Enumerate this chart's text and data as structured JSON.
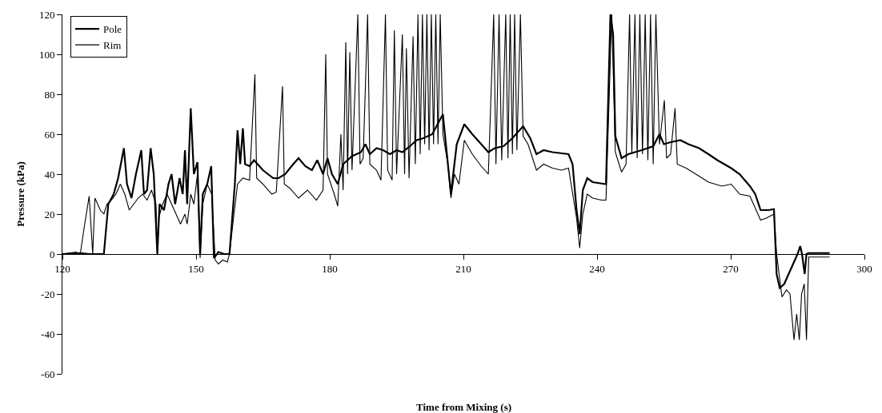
{
  "chart_data": {
    "type": "line",
    "xlabel": "Time from Mixing (s)",
    "ylabel": "Pressure (kPa)",
    "xlim": [
      120,
      300
    ],
    "xticks": [
      120,
      150,
      180,
      210,
      240,
      270,
      300
    ],
    "ylim": [
      -60,
      120
    ],
    "yticks": [
      -60,
      -40,
      -20,
      0,
      20,
      40,
      60,
      80,
      100,
      120
    ],
    "grid": false,
    "legend": "top left",
    "marker": "none",
    "line_style": "solid",
    "series": [
      {
        "name": "Pole",
        "color": "#000000",
        "x": [
          120,
          124,
          126,
          128.5,
          129.3,
          130.3,
          131.5,
          132.5,
          133.8,
          134.5,
          135.5,
          136.5,
          137.7,
          138.3,
          139,
          139.8,
          140.5,
          141.3,
          141.8,
          142.8,
          143.8,
          144.5,
          145.3,
          146.3,
          147,
          147.5,
          148,
          148.8,
          149.5,
          150.3,
          150.9,
          151.5,
          152.5,
          153.4,
          154,
          155,
          156.3,
          157.5,
          158.7,
          159.3,
          159.9,
          160.5,
          161,
          162,
          163,
          165,
          167.3,
          168.5,
          170,
          171.8,
          173,
          174.5,
          176,
          177.2,
          178.5,
          179.5,
          180.5,
          181.8,
          183,
          185,
          187,
          188,
          189,
          190.5,
          192,
          193.5,
          195,
          196.3,
          198,
          199.5,
          201,
          203,
          205.4,
          206.3,
          207.2,
          208.5,
          210.2,
          212,
          214,
          215.6,
          217,
          219,
          221,
          223.4,
          225,
          226.4,
          228,
          230,
          233.6,
          234.5,
          235.4,
          236.1,
          236.8,
          237.8,
          239,
          242,
          243,
          243.6,
          244.1,
          245.5,
          247,
          250,
          252.6,
          254,
          255,
          256.5,
          258.7,
          260.5,
          262.9,
          265,
          267,
          270.1,
          272,
          274.3,
          275.5,
          276.7,
          278.5,
          279.7,
          280.3,
          281,
          282,
          283,
          284,
          285,
          285.6,
          286,
          286.6,
          287,
          287.5,
          292.2
        ],
        "values": [
          0,
          0.5,
          0,
          0,
          0,
          25,
          30,
          38,
          53,
          35,
          28,
          40,
          52,
          30,
          32,
          53,
          40,
          0,
          25,
          22,
          35,
          40,
          25,
          38,
          30,
          52,
          25,
          73,
          40,
          46,
          0,
          30,
          35,
          44,
          -2,
          1,
          0,
          0,
          35,
          62,
          45,
          63,
          45,
          44,
          47,
          42,
          38,
          38,
          40,
          45,
          48,
          44,
          42,
          47,
          40,
          48,
          40,
          35,
          45,
          49,
          51,
          55,
          50,
          53,
          52,
          50,
          52,
          51,
          54,
          57,
          58,
          60,
          70,
          50,
          30,
          55,
          65,
          60,
          55,
          51,
          53,
          54,
          58,
          64,
          58,
          50,
          52,
          51,
          50,
          45,
          22,
          10,
          32,
          38,
          36,
          35,
          120,
          110,
          59,
          48,
          50,
          52,
          54,
          60,
          55,
          56,
          57,
          55,
          53,
          50,
          47,
          43,
          40,
          34,
          30,
          22,
          22,
          22.5,
          -10,
          -17,
          -15,
          -10,
          -5,
          0,
          4,
          0,
          -10,
          0,
          0.5,
          0.5
        ]
      },
      {
        "name": "Rim",
        "color": "#000000",
        "x": [
          120,
          121.5,
          123,
          124,
          125,
          126,
          126.8,
          127.3,
          128.5,
          129.3,
          130,
          131,
          132,
          133,
          134,
          135,
          136,
          137,
          138,
          139,
          140,
          141,
          141.3,
          141.6,
          142.5,
          143.5,
          144.5,
          145.5,
          146.5,
          147.5,
          148,
          148.8,
          149.5,
          150.3,
          150.9,
          151.5,
          152.5,
          153.5,
          154.3,
          155,
          156,
          157,
          157.5,
          158.5,
          159.3,
          160.5,
          162,
          163.2,
          163.6,
          165,
          167,
          168,
          169.4,
          169.8,
          171,
          173,
          175,
          177,
          178.5,
          179.1,
          179.5,
          181,
          181.8,
          182.5,
          183,
          183.6,
          184,
          184.5,
          185,
          186.3,
          186.8,
          187.5,
          188.5,
          189,
          190.5,
          191.5,
          192.5,
          193,
          194,
          194.5,
          195,
          196.3,
          196.8,
          197.2,
          197.8,
          198.7,
          199.2,
          199.8,
          200.3,
          200.8,
          201.3,
          201.8,
          202.3,
          202.8,
          203.3,
          203.8,
          204.3,
          204.8,
          205.4,
          206.5,
          207.2,
          208,
          209,
          210.2,
          212,
          214,
          215.6,
          216.8,
          217.3,
          218,
          218.6,
          219.5,
          220,
          220.5,
          221,
          221.5,
          222,
          222.8,
          223.4,
          224.5,
          226.4,
          228,
          230,
          232,
          233.6,
          235.4,
          236.1,
          236.8,
          237.8,
          239,
          241,
          242,
          243.3,
          244.1,
          245.5,
          246.5,
          247.3,
          247.8,
          248.5,
          249,
          249.6,
          250.2,
          250.8,
          251.4,
          252,
          252.6,
          253.2,
          254,
          255.1,
          255.6,
          256.5,
          257.5,
          258,
          260,
          262.9,
          265,
          268,
          270.1,
          272,
          274.3,
          276.7,
          278,
          279.7,
          280.3,
          281.5,
          282.5,
          283.3,
          284.2,
          284.8,
          285.4,
          285.9,
          286.5,
          287,
          287.5,
          292.2
        ],
        "values": [
          0,
          0.5,
          1,
          0,
          15,
          29,
          0,
          28,
          22,
          20,
          25,
          27,
          30,
          35,
          30,
          22,
          25,
          28,
          30,
          27,
          32,
          25,
          0,
          18,
          25,
          30,
          25,
          20,
          15,
          20,
          15,
          30,
          25,
          40,
          -2,
          25,
          35,
          30,
          -3,
          -5,
          -3,
          -4,
          0,
          20,
          35,
          38,
          37,
          90,
          38,
          35,
          30,
          31,
          84,
          35,
          33,
          28,
          32,
          27,
          32,
          100,
          40,
          30,
          24,
          60,
          32,
          106,
          40,
          101,
          42,
          120,
          45,
          48,
          120,
          45,
          42,
          37,
          120,
          42,
          37,
          112,
          40,
          110,
          40,
          103,
          38,
          109,
          45,
          120,
          50,
          120,
          55,
          120,
          52,
          120,
          55,
          120,
          55,
          120,
          60,
          45,
          28,
          40,
          35,
          57,
          50,
          44,
          40,
          120,
          45,
          120,
          47,
          120,
          48,
          120,
          50,
          120,
          52,
          120,
          59,
          55,
          42,
          45,
          43,
          42,
          43,
          18,
          3,
          20,
          30,
          28,
          27,
          27,
          120,
          51,
          41,
          45,
          120,
          50,
          120,
          48,
          120,
          50,
          120,
          47,
          120,
          45,
          120,
          55,
          77,
          48,
          50,
          73,
          45,
          43,
          39,
          36,
          34,
          35,
          30,
          29,
          17,
          18,
          20,
          0,
          -21.5,
          -18,
          -20,
          -43,
          -30,
          -43,
          -20,
          -15,
          -43,
          -1.5,
          -1.5
        ]
      }
    ]
  }
}
